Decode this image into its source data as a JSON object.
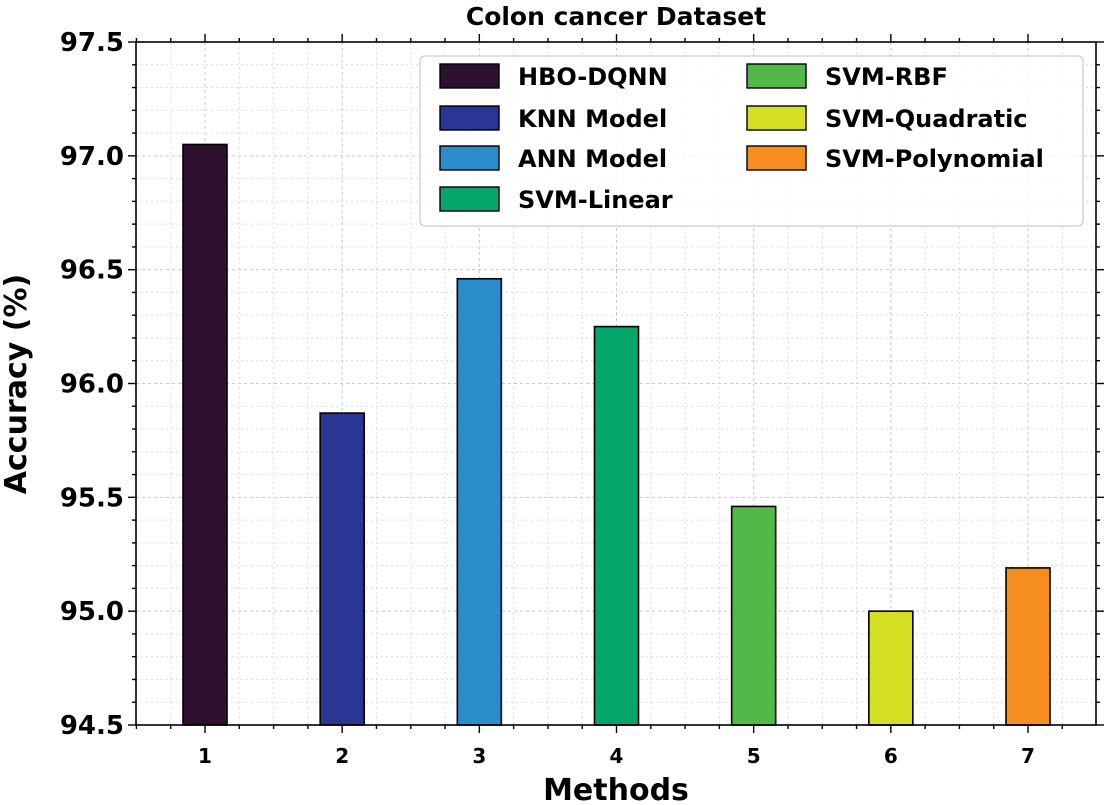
{
  "chart_data": {
    "type": "bar",
    "title": "Colon cancer Dataset",
    "xlabel": "Methods",
    "ylabel": "Accuracy (%)",
    "ylim": [
      94.5,
      97.5
    ],
    "yticks": [
      "94.5",
      "95.0",
      "95.5",
      "96.0",
      "96.5",
      "97.0",
      "97.5"
    ],
    "categories": [
      "1",
      "2",
      "3",
      "4",
      "5",
      "6",
      "7"
    ],
    "grid": true,
    "legend_position": "top-right",
    "series": [
      {
        "name": "HBO-DQNN",
        "value": 97.05,
        "color": "#2d0f30"
      },
      {
        "name": "KNN Model",
        "value": 95.87,
        "color": "#2b3593"
      },
      {
        "name": "ANN Model",
        "value": 96.46,
        "color": "#2b8ccc"
      },
      {
        "name": "SVM-Linear",
        "value": 96.25,
        "color": "#05a66b"
      },
      {
        "name": "SVM-RBF",
        "value": 95.46,
        "color": "#52b848"
      },
      {
        "name": "SVM-Quadratic",
        "value": 95.0,
        "color": "#d4de22"
      },
      {
        "name": "SVM-Polynomial",
        "value": 95.19,
        "color": "#f58d1f"
      }
    ]
  }
}
